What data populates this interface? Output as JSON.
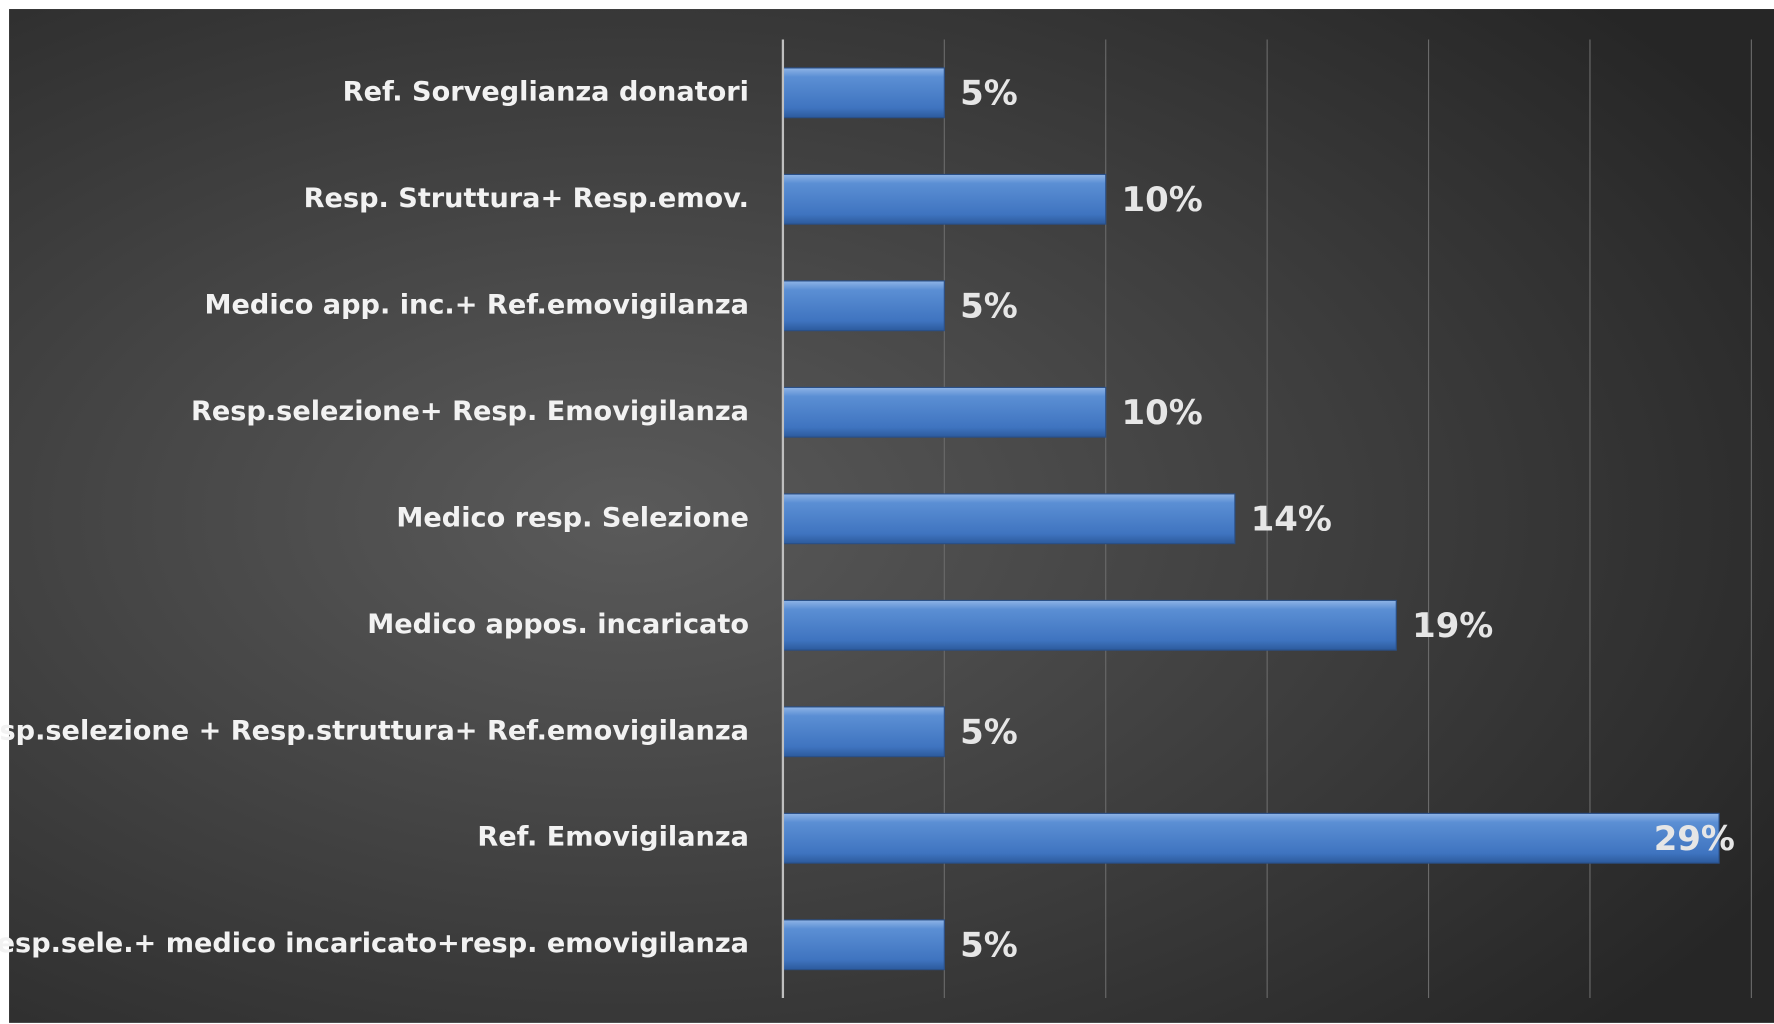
{
  "chart_data": {
    "type": "bar",
    "orientation": "horizontal",
    "categories": [
      "Ref. Sorveglianza donatori",
      "Resp. Struttura+ Resp.emov.",
      "Medico app. inc.+ Ref.emovigilanza",
      "Resp.selezione+ Resp. Emovigilanza",
      "Medico resp. Selezione",
      "Medico appos. incaricato",
      "Resp.selezione + Resp.struttura+ Ref.emovigilanza",
      "Ref. Emovigilanza",
      "Resp.sele.+ medico incaricato+resp. emovigilanza"
    ],
    "values": [
      5,
      10,
      5,
      10,
      14,
      19,
      5,
      29,
      5
    ],
    "value_labels": [
      "5%",
      "10%",
      "5%",
      "10%",
      "14%",
      "19%",
      "5%",
      "29%",
      "5%"
    ],
    "color": "#4f81bd",
    "xlim": [
      0,
      30
    ],
    "xticks": [
      0,
      5,
      10,
      15,
      20,
      25,
      30
    ],
    "grid": true
  }
}
